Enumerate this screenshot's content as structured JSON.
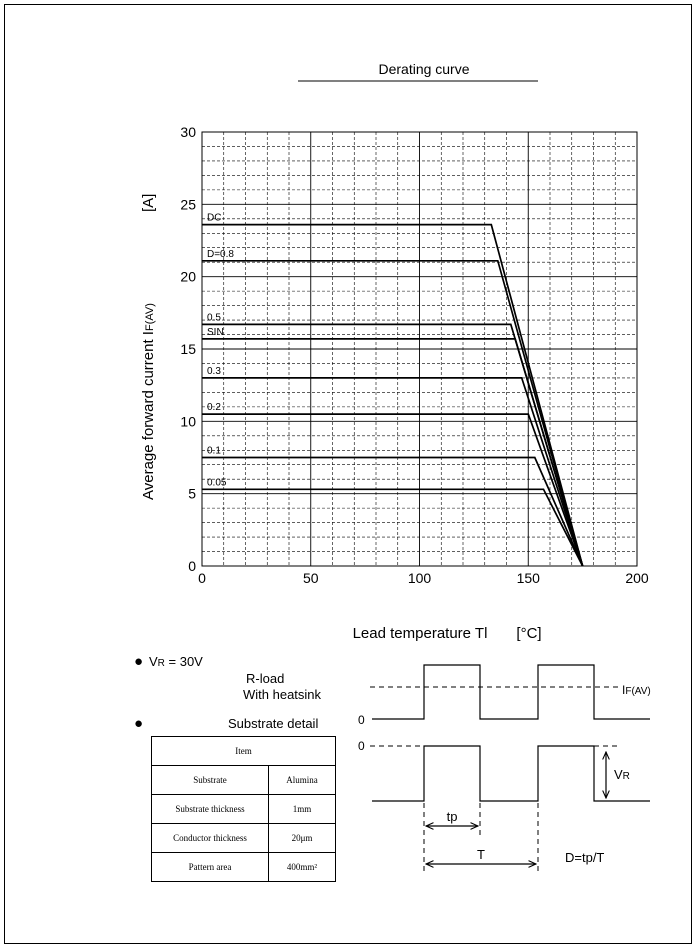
{
  "chart_data": {
    "type": "line",
    "title": "Derating curve",
    "xlabel": "Lead temperature  Tl",
    "xunit": "[°C]",
    "ylabel_main": "Average forward current  I",
    "ylabel_sub": "F(AV)",
    "yunit": "[A]",
    "xlim": [
      0,
      200
    ],
    "ylim": [
      0,
      30
    ],
    "x_ticks": [
      0,
      50,
      100,
      150,
      200
    ],
    "y_ticks": [
      0,
      5,
      10,
      15,
      20,
      25,
      30
    ],
    "grid": true,
    "series": [
      {
        "name": "DC",
        "points": [
          [
            0,
            23.6
          ],
          [
            133,
            23.6
          ],
          [
            175,
            0
          ]
        ]
      },
      {
        "name": "D=0.8",
        "points": [
          [
            0,
            21.1
          ],
          [
            136,
            21.1
          ],
          [
            175,
            0
          ]
        ]
      },
      {
        "name": "0.5",
        "points": [
          [
            0,
            16.7
          ],
          [
            142,
            16.7
          ],
          [
            175,
            0
          ]
        ]
      },
      {
        "name": "SIN",
        "points": [
          [
            0,
            15.7
          ],
          [
            144,
            15.7
          ],
          [
            175,
            0
          ]
        ]
      },
      {
        "name": "0.3",
        "points": [
          [
            0,
            13.0
          ],
          [
            147,
            13.0
          ],
          [
            175,
            0
          ]
        ]
      },
      {
        "name": "0.2",
        "points": [
          [
            0,
            10.5
          ],
          [
            150,
            10.5
          ],
          [
            175,
            0
          ]
        ]
      },
      {
        "name": "0.1",
        "points": [
          [
            0,
            7.5
          ],
          [
            153,
            7.5
          ],
          [
            175,
            0
          ]
        ]
      },
      {
        "name": "0.05",
        "points": [
          [
            0,
            5.3
          ],
          [
            157,
            5.3
          ],
          [
            175,
            0
          ]
        ]
      }
    ]
  },
  "conditions": {
    "bullet": "●",
    "vr_prefix": "V",
    "vr_sub": "R",
    "vr_value": " = 30V",
    "load": "R-load",
    "heatsink": "With heatsink",
    "substrate_heading": "Substrate detail"
  },
  "table": {
    "header": "Item",
    "rows": [
      {
        "item": "Substrate",
        "value": "Alumina"
      },
      {
        "item": "Substrate thickness",
        "value": "1mm"
      },
      {
        "item": "Conductor thickness",
        "value": "20μm"
      },
      {
        "item": "Pattern area",
        "value": "400mm²"
      }
    ]
  },
  "waveform": {
    "if_main": "I",
    "if_sub": "F(AV)",
    "zero": "0",
    "vr_main": "V",
    "vr_sub": "R",
    "tp": "tp",
    "T": "T",
    "duty": "D=tp/T"
  }
}
